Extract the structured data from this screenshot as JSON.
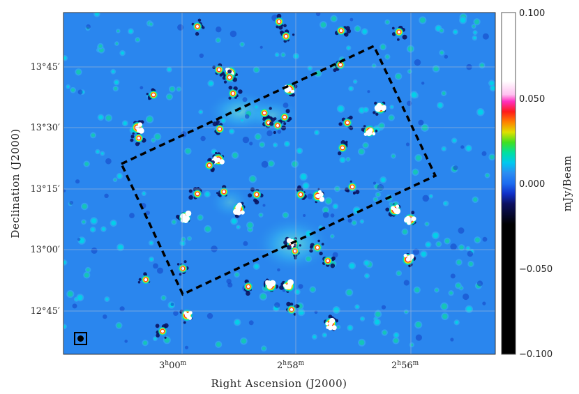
{
  "figure": {
    "xlabel": "Right Ascension (J2000)",
    "ylabel": "Declination (J2000)",
    "ra_ticks": [
      {
        "h": "3",
        "m": "00"
      },
      {
        "h": "2",
        "m": "58"
      },
      {
        "h": "2",
        "m": "56"
      }
    ],
    "dec_ticks": [
      {
        "d": "13",
        "m": "45"
      },
      {
        "d": "13",
        "m": "30"
      },
      {
        "d": "13",
        "m": "15"
      },
      {
        "d": "13",
        "m": "00"
      },
      {
        "d": "12",
        "m": "45"
      }
    ],
    "colorbar": {
      "label": "mJy/Beam",
      "tick_labels": [
        "0.100",
        "0.050",
        "0.000",
        "−0.050",
        "−0.100"
      ]
    },
    "colors": {
      "background_field": "#2a86ee",
      "grid": "#9fb6d6",
      "survey_box": "#000000"
    }
  }
}
